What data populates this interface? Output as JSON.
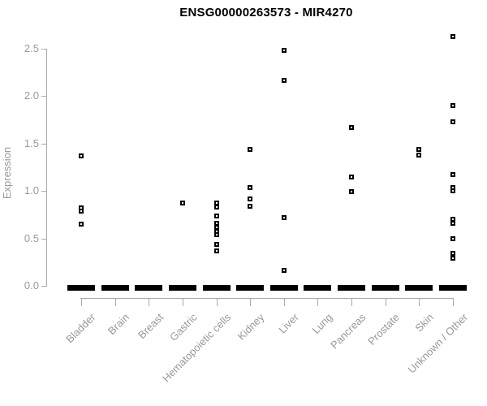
{
  "chart_data": {
    "type": "scatter",
    "title": "ENSG00000263573 - MIR4270",
    "xlabel": "",
    "ylabel": "Expression",
    "ylim": [
      0,
      2.7
    ],
    "yticks": [
      0.0,
      0.5,
      1.0,
      1.5,
      2.0,
      2.5
    ],
    "ytick_labels": [
      "0.0",
      "0.5",
      "1.0",
      "1.5",
      "2.0",
      "2.5"
    ],
    "grid": false,
    "legend_position": "none",
    "marker": "open-square",
    "marker_color": "#000000",
    "axis_line_color": "#a9a9a9",
    "axis_text_color": "#999999",
    "zero_cluster_note": "every category shows a dense bar of overlapping points at expression 0.0",
    "categories": [
      "Bladder",
      "Brain",
      "Breast",
      "Gastric",
      "Hematopoietic cells",
      "Kidney",
      "Liver",
      "Lung",
      "Pancreas",
      "Prostate",
      "Skin",
      "Unknown / Other"
    ],
    "series": [
      {
        "category": "Bladder",
        "values": [
          1.37,
          0.82,
          0.79,
          0.65
        ],
        "zero_cluster": true
      },
      {
        "category": "Brain",
        "values": [],
        "zero_cluster": true
      },
      {
        "category": "Breast",
        "values": [],
        "zero_cluster": true
      },
      {
        "category": "Gastric",
        "values": [
          0.87
        ],
        "zero_cluster": true
      },
      {
        "category": "Hematopoietic cells",
        "values": [
          0.87,
          0.83,
          0.74,
          0.66,
          0.62,
          0.57,
          0.54,
          0.44,
          0.37
        ],
        "zero_cluster": true
      },
      {
        "category": "Kidney",
        "values": [
          1.44,
          1.04,
          0.92,
          0.84
        ],
        "zero_cluster": true
      },
      {
        "category": "Liver",
        "values": [
          2.48,
          2.17,
          0.72,
          0.16
        ],
        "zero_cluster": true
      },
      {
        "category": "Lung",
        "values": [],
        "zero_cluster": true
      },
      {
        "category": "Pancreas",
        "values": [
          1.67,
          1.15,
          0.99
        ],
        "zero_cluster": true
      },
      {
        "category": "Prostate",
        "values": [],
        "zero_cluster": true
      },
      {
        "category": "Skin",
        "values": [
          1.44,
          1.38
        ],
        "zero_cluster": true
      },
      {
        "category": "Unknown / Other",
        "values": [
          2.63,
          1.9,
          1.73,
          1.17,
          1.04,
          1.0,
          0.7,
          0.66,
          0.5,
          0.34,
          0.29
        ],
        "zero_cluster": true
      }
    ]
  }
}
